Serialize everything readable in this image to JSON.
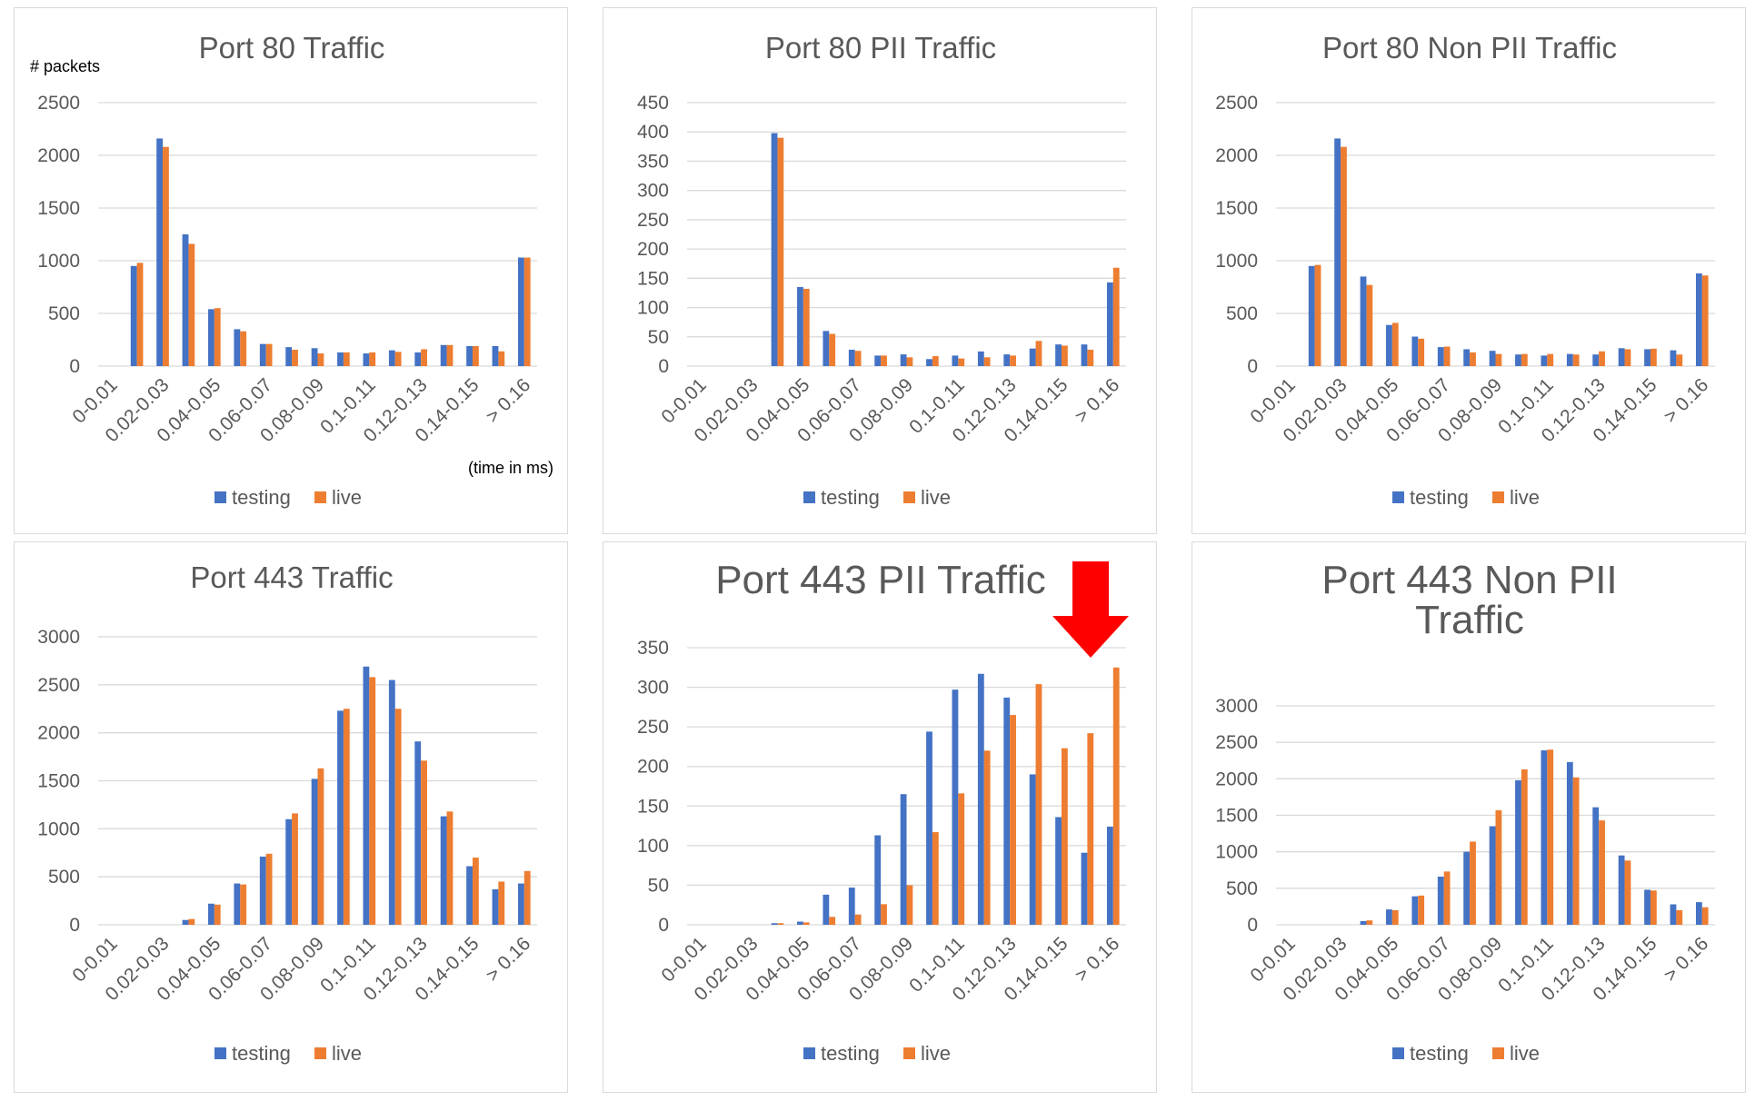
{
  "colors": {
    "testing": "#4472C4",
    "live": "#ED7D31",
    "arrow": "#FF0000"
  },
  "legend": [
    "testing",
    "live"
  ],
  "charts_layout_note": "",
  "chart_data": [
    {
      "type": "bar",
      "title": "Port 80 Traffic",
      "ylabel": "# packets",
      "xlabel": "(time in ms)",
      "ylim": [
        0,
        2500
      ],
      "yticks": [
        0,
        500,
        1000,
        1500,
        2000,
        2500
      ],
      "categories": [
        "0-0.01",
        "0.01-0.02",
        "0.02-0.03",
        "0.03-0.04",
        "0.04-0.05",
        "0.05-0.06",
        "0.06-0.07",
        "0.07-0.08",
        "0.08-0.09",
        "0.09-0.1",
        "0.1-0.11",
        "0.11-0.12",
        "0.12-0.13",
        "0.13-0.14",
        "0.14-0.15",
        "0.15-0.16",
        "> 0.16"
      ],
      "tick_labels": [
        "0-0.01",
        "",
        "0.02-0.03",
        "",
        "0.04-0.05",
        "",
        "0.06-0.07",
        "",
        "0.08-0.09",
        "",
        "0.1-0.11",
        "",
        "0.12-0.13",
        "",
        "0.14-0.15",
        "",
        "> 0.16"
      ],
      "series": [
        {
          "name": "testing",
          "values": [
            0,
            950,
            2160,
            1250,
            540,
            350,
            210,
            180,
            170,
            130,
            120,
            150,
            130,
            200,
            190,
            190,
            1030
          ]
        },
        {
          "name": "live",
          "values": [
            0,
            980,
            2080,
            1160,
            550,
            330,
            210,
            155,
            120,
            130,
            130,
            135,
            160,
            200,
            190,
            140,
            1030
          ]
        }
      ]
    },
    {
      "type": "bar",
      "title": "Port 80 PII Traffic",
      "ylim": [
        0,
        450
      ],
      "yticks": [
        0,
        50,
        100,
        150,
        200,
        250,
        300,
        350,
        400,
        450
      ],
      "categories": [
        "0-0.01",
        "0.01-0.02",
        "0.02-0.03",
        "0.03-0.04",
        "0.04-0.05",
        "0.05-0.06",
        "0.06-0.07",
        "0.07-0.08",
        "0.08-0.09",
        "0.09-0.1",
        "0.1-0.11",
        "0.11-0.12",
        "0.12-0.13",
        "0.13-0.14",
        "0.14-0.15",
        "0.15-0.16",
        "> 0.16"
      ],
      "tick_labels": [
        "0-0.01",
        "",
        "0.02-0.03",
        "",
        "0.04-0.05",
        "",
        "0.06-0.07",
        "",
        "0.08-0.09",
        "",
        "0.1-0.11",
        "",
        "0.12-0.13",
        "",
        "0.14-0.15",
        "",
        "> 0.16"
      ],
      "series": [
        {
          "name": "testing",
          "values": [
            0,
            0,
            0,
            398,
            135,
            60,
            28,
            18,
            20,
            12,
            18,
            25,
            20,
            30,
            37,
            37,
            143
          ]
        },
        {
          "name": "live",
          "values": [
            0,
            0,
            0,
            390,
            132,
            55,
            26,
            18,
            15,
            17,
            13,
            15,
            18,
            43,
            35,
            28,
            168
          ]
        }
      ]
    },
    {
      "type": "bar",
      "title": "Port 80 Non PII Traffic",
      "ylim": [
        0,
        2500
      ],
      "yticks": [
        0,
        500,
        1000,
        1500,
        2000,
        2500
      ],
      "categories": [
        "0-0.01",
        "0.01-0.02",
        "0.02-0.03",
        "0.03-0.04",
        "0.04-0.05",
        "0.05-0.06",
        "0.06-0.07",
        "0.07-0.08",
        "0.08-0.09",
        "0.09-0.1",
        "0.1-0.11",
        "0.11-0.12",
        "0.12-0.13",
        "0.13-0.14",
        "0.14-0.15",
        "0.15-0.16",
        "> 0.16"
      ],
      "tick_labels": [
        "0-0.01",
        "",
        "0.02-0.03",
        "",
        "0.04-0.05",
        "",
        "0.06-0.07",
        "",
        "0.08-0.09",
        "",
        "0.1-0.11",
        "",
        "0.12-0.13",
        "",
        "0.14-0.15",
        "",
        "> 0.16"
      ],
      "series": [
        {
          "name": "testing",
          "values": [
            0,
            950,
            2160,
            850,
            390,
            280,
            180,
            160,
            145,
            110,
            100,
            115,
            110,
            170,
            160,
            150,
            880
          ]
        },
        {
          "name": "live",
          "values": [
            0,
            960,
            2080,
            770,
            410,
            260,
            185,
            130,
            115,
            115,
            115,
            110,
            140,
            160,
            165,
            110,
            860
          ]
        }
      ]
    },
    {
      "type": "bar",
      "title": "Port 443 Traffic",
      "ylim": [
        0,
        3000
      ],
      "yticks": [
        0,
        500,
        1000,
        1500,
        2000,
        2500,
        3000
      ],
      "categories": [
        "0-0.01",
        "0.01-0.02",
        "0.02-0.03",
        "0.03-0.04",
        "0.04-0.05",
        "0.05-0.06",
        "0.06-0.07",
        "0.07-0.08",
        "0.08-0.09",
        "0.09-0.1",
        "0.1-0.11",
        "0.11-0.12",
        "0.12-0.13",
        "0.13-0.14",
        "0.14-0.15",
        "0.15-0.16",
        "> 0.16"
      ],
      "tick_labels": [
        "0-0.01",
        "",
        "0.02-0.03",
        "",
        "0.04-0.05",
        "",
        "0.06-0.07",
        "",
        "0.08-0.09",
        "",
        "0.1-0.11",
        "",
        "0.12-0.13",
        "",
        "0.14-0.15",
        "",
        "> 0.16"
      ],
      "series": [
        {
          "name": "testing",
          "values": [
            0,
            0,
            0,
            50,
            220,
            430,
            710,
            1100,
            1520,
            2230,
            2690,
            2550,
            1910,
            1130,
            610,
            370,
            430
          ]
        },
        {
          "name": "live",
          "values": [
            0,
            0,
            0,
            60,
            210,
            420,
            740,
            1160,
            1630,
            2250,
            2580,
            2250,
            1710,
            1180,
            700,
            450,
            560
          ]
        }
      ]
    },
    {
      "type": "bar",
      "title": "Port 443 PII Traffic",
      "ylim": [
        0,
        350
      ],
      "yticks": [
        0,
        50,
        100,
        150,
        200,
        250,
        300,
        350
      ],
      "categories": [
        "0-0.01",
        "0.01-0.02",
        "0.02-0.03",
        "0.03-0.04",
        "0.04-0.05",
        "0.05-0.06",
        "0.06-0.07",
        "0.07-0.08",
        "0.08-0.09",
        "0.09-0.1",
        "0.1-0.11",
        "0.11-0.12",
        "0.12-0.13",
        "0.13-0.14",
        "0.14-0.15",
        "0.15-0.16",
        "> 0.16"
      ],
      "tick_labels": [
        "0-0.01",
        "",
        "0.02-0.03",
        "",
        "0.04-0.05",
        "",
        "0.06-0.07",
        "",
        "0.08-0.09",
        "",
        "0.1-0.11",
        "",
        "0.12-0.13",
        "",
        "0.14-0.15",
        "",
        "> 0.16"
      ],
      "series": [
        {
          "name": "testing",
          "values": [
            0,
            0,
            0,
            2,
            4,
            38,
            47,
            113,
            165,
            244,
            297,
            317,
            287,
            190,
            136,
            91,
            124
          ]
        },
        {
          "name": "live",
          "values": [
            0,
            0,
            0,
            2,
            3,
            10,
            13,
            26,
            50,
            117,
            166,
            220,
            265,
            304,
            223,
            242,
            325
          ]
        }
      ]
    },
    {
      "type": "bar",
      "title": "Port 443 Non PII Traffic",
      "ylim": [
        0,
        3000
      ],
      "yticks": [
        0,
        500,
        1000,
        1500,
        2000,
        2500,
        3000
      ],
      "categories": [
        "0-0.01",
        "0.01-0.02",
        "0.02-0.03",
        "0.03-0.04",
        "0.04-0.05",
        "0.05-0.06",
        "0.06-0.07",
        "0.07-0.08",
        "0.08-0.09",
        "0.09-0.1",
        "0.1-0.11",
        "0.11-0.12",
        "0.12-0.13",
        "0.13-0.14",
        "0.14-0.15",
        "0.15-0.16",
        "> 0.16"
      ],
      "tick_labels": [
        "0-0.01",
        "",
        "0.02-0.03",
        "",
        "0.04-0.05",
        "",
        "0.06-0.07",
        "",
        "0.08-0.09",
        "",
        "0.1-0.11",
        "",
        "0.12-0.13",
        "",
        "0.14-0.15",
        "",
        "> 0.16"
      ],
      "series": [
        {
          "name": "testing",
          "values": [
            0,
            0,
            0,
            50,
            210,
            390,
            660,
            1000,
            1350,
            1980,
            2390,
            2230,
            1610,
            950,
            480,
            280,
            310
          ]
        },
        {
          "name": "live",
          "values": [
            0,
            0,
            0,
            60,
            200,
            400,
            730,
            1140,
            1570,
            2130,
            2400,
            2020,
            1430,
            880,
            470,
            200,
            240
          ]
        }
      ]
    }
  ]
}
